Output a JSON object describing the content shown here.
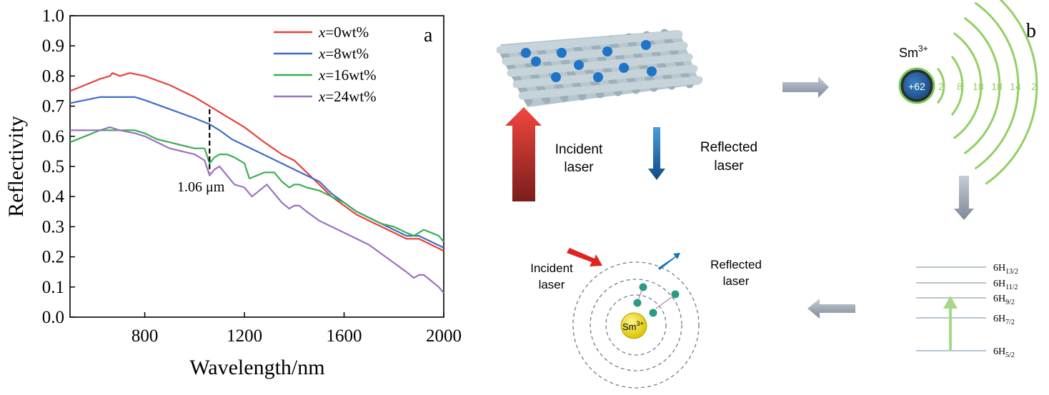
{
  "chart_data": {
    "type": "line",
    "panel_label": "a",
    "xlabel": "Wavelength/nm",
    "ylabel": "Reflectivity",
    "xlim": [
      500,
      2000
    ],
    "ylim": [
      0.0,
      1.0
    ],
    "xticks": [
      800,
      1200,
      1600,
      2000
    ],
    "xtick_labels": [
      "800",
      "1200",
      "1600",
      "2000"
    ],
    "yticks": [
      0.0,
      0.1,
      0.2,
      0.3,
      0.4,
      0.5,
      0.6,
      0.7,
      0.8,
      0.9,
      1.0
    ],
    "ytick_labels": [
      "0.0",
      "0.1",
      "0.2",
      "0.3",
      "0.4",
      "0.5",
      "0.6",
      "0.7",
      "0.8",
      "0.9",
      "1.0"
    ],
    "grid": false,
    "legend_position": "top-right",
    "annotation": {
      "text": "1.06 μm",
      "x": 1060,
      "y_top": 0.69,
      "y_bottom": 0.48
    },
    "series": [
      {
        "name": "x=0wt%",
        "legend_var": "x",
        "legend_rest": "=0wt%",
        "color": "#e8413a",
        "x": [
          500,
          560,
          620,
          660,
          670,
          700,
          740,
          800,
          900,
          1000,
          1060,
          1120,
          1200,
          1280,
          1350,
          1400,
          1450,
          1500,
          1550,
          1600,
          1650,
          1700,
          1750,
          1800,
          1850,
          1900,
          1950,
          2000
        ],
        "y": [
          0.75,
          0.77,
          0.79,
          0.8,
          0.81,
          0.8,
          0.81,
          0.8,
          0.77,
          0.73,
          0.7,
          0.67,
          0.63,
          0.58,
          0.54,
          0.52,
          0.48,
          0.44,
          0.4,
          0.37,
          0.34,
          0.32,
          0.3,
          0.28,
          0.26,
          0.26,
          0.24,
          0.22
        ]
      },
      {
        "name": "x=8wt%",
        "legend_var": "x",
        "legend_rest": "=8wt%",
        "color": "#3f6ec6",
        "x": [
          500,
          560,
          620,
          700,
          760,
          800,
          900,
          1000,
          1060,
          1100,
          1150,
          1200,
          1250,
          1300,
          1350,
          1400,
          1450,
          1500,
          1550,
          1600,
          1650,
          1700,
          1750,
          1800,
          1850,
          1900,
          1950,
          2000
        ],
        "y": [
          0.71,
          0.72,
          0.73,
          0.73,
          0.73,
          0.72,
          0.69,
          0.66,
          0.64,
          0.62,
          0.59,
          0.57,
          0.55,
          0.53,
          0.51,
          0.49,
          0.47,
          0.45,
          0.41,
          0.38,
          0.35,
          0.33,
          0.31,
          0.29,
          0.27,
          0.27,
          0.25,
          0.23
        ]
      },
      {
        "name": "x=16wt%",
        "legend_var": "x",
        "legend_rest": "=16wt%",
        "color": "#3dae57",
        "x": [
          500,
          560,
          620,
          700,
          760,
          800,
          850,
          900,
          950,
          1000,
          1040,
          1060,
          1080,
          1100,
          1130,
          1160,
          1200,
          1220,
          1250,
          1280,
          1320,
          1350,
          1380,
          1400,
          1420,
          1450,
          1500,
          1550,
          1600,
          1650,
          1700,
          1750,
          1800,
          1850,
          1880,
          1900,
          1920,
          1950,
          1980,
          2000
        ],
        "y": [
          0.58,
          0.6,
          0.62,
          0.62,
          0.62,
          0.61,
          0.59,
          0.58,
          0.57,
          0.56,
          0.56,
          0.51,
          0.53,
          0.54,
          0.54,
          0.53,
          0.51,
          0.46,
          0.47,
          0.48,
          0.48,
          0.45,
          0.43,
          0.44,
          0.44,
          0.43,
          0.42,
          0.4,
          0.38,
          0.35,
          0.33,
          0.31,
          0.3,
          0.28,
          0.27,
          0.28,
          0.29,
          0.28,
          0.27,
          0.25
        ]
      },
      {
        "name": "x=24wt%",
        "legend_var": "x",
        "legend_rest": "=24wt%",
        "color": "#9a72c2",
        "x": [
          500,
          560,
          620,
          660,
          700,
          760,
          800,
          850,
          900,
          950,
          1000,
          1040,
          1060,
          1080,
          1100,
          1130,
          1160,
          1200,
          1230,
          1260,
          1290,
          1320,
          1350,
          1380,
          1400,
          1420,
          1450,
          1500,
          1550,
          1600,
          1650,
          1700,
          1750,
          1800,
          1850,
          1880,
          1900,
          1920,
          1950,
          1980,
          2000
        ],
        "y": [
          0.62,
          0.62,
          0.62,
          0.63,
          0.62,
          0.61,
          0.6,
          0.58,
          0.56,
          0.55,
          0.54,
          0.52,
          0.47,
          0.49,
          0.5,
          0.47,
          0.44,
          0.43,
          0.4,
          0.42,
          0.44,
          0.41,
          0.38,
          0.36,
          0.37,
          0.37,
          0.35,
          0.32,
          0.3,
          0.28,
          0.26,
          0.24,
          0.21,
          0.18,
          0.15,
          0.13,
          0.14,
          0.14,
          0.12,
          0.1,
          0.08
        ]
      }
    ]
  },
  "diagram": {
    "panel_label": "b",
    "incident_label": [
      "Incident",
      "laser"
    ],
    "reflected_label": [
      "Reflected",
      "laser"
    ],
    "ion_symbol": "Sm",
    "ion_superscript": "3+",
    "nucleus_charge": "+62",
    "shell_electrons": [
      "2",
      "8",
      "18",
      "18",
      "14",
      "2"
    ],
    "energy_levels": [
      {
        "term": "6H",
        "sub": "13/2"
      },
      {
        "term": "6H",
        "sub": "11/2"
      },
      {
        "term": "6H",
        "sub": "9/2"
      },
      {
        "term": "6H",
        "sub": "7/2"
      },
      {
        "term": "6H",
        "sub": "5/2"
      }
    ],
    "bottom_incident_label": [
      "Incident",
      "laser"
    ],
    "bottom_reflected_label": [
      "Reflected",
      "laser"
    ],
    "atom_core_label": "Sm",
    "atom_core_superscript": "3+"
  }
}
